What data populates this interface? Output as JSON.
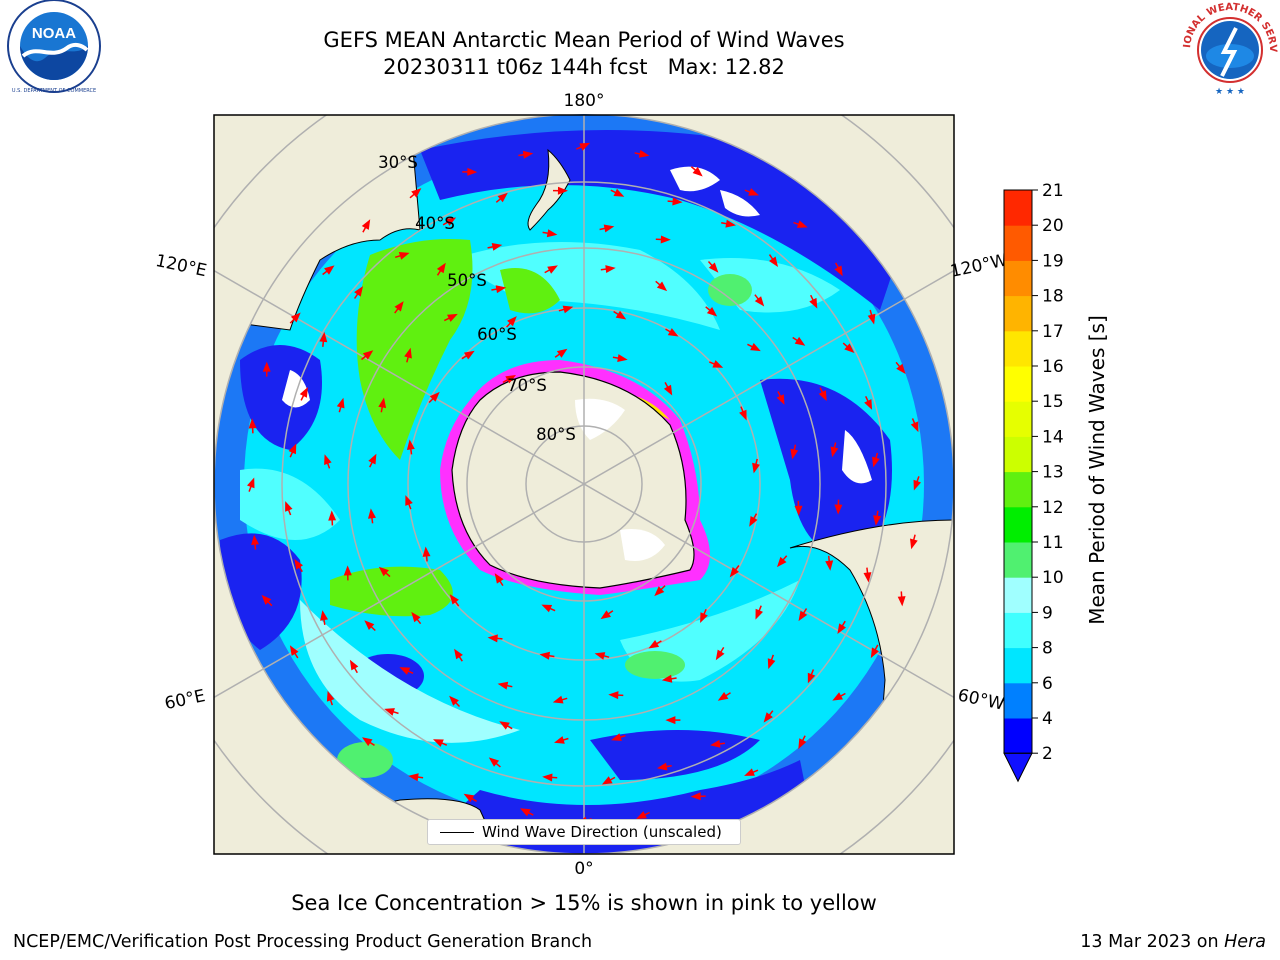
{
  "header": {
    "title_line1": "GEFS MEAN Antarctic Mean Period of Wind Waves",
    "title_line2": "20230311 t06z 144h fcst   Max: 12.82"
  },
  "logos": {
    "left": "NOAA",
    "left_ring_text": "NATIONAL OCEANIC AND ATMOSPHERIC ADMINISTRATION · U.S. DEPARTMENT OF COMMERCE",
    "right_ring_text": "NATIONAL WEATHER SERVICE"
  },
  "map": {
    "projection": "south-polar-stereographic",
    "lon_labels": {
      "top": "180°",
      "bottom": "0°",
      "upper_left": "120°E",
      "upper_right": "120°W",
      "lower_left": "60°E",
      "lower_right": "60°W"
    },
    "lat_labels": [
      "30°S",
      "40°S",
      "50°S",
      "60°S",
      "70°S",
      "80°S"
    ],
    "legend_label": "Wind Wave Direction (unscaled)",
    "colors": {
      "land": "#efedda",
      "ocean_dark": "#1a23f0",
      "ocean_mid": "#1c78f5",
      "ocean_cyan": "#00f0ff",
      "ocean_light": "#50ffff",
      "ocean_pale": "#a0ffff",
      "green_light": "#50f070",
      "green": "#60f010",
      "sea_ice": "#ff30ff",
      "arrow": "#ff0000",
      "grid": "#b0b0b0"
    }
  },
  "colorbar": {
    "label": "Mean Period of Wind Waves [s]",
    "ticks": [
      2,
      4,
      6,
      8,
      9,
      10,
      11,
      12,
      13,
      14,
      15,
      16,
      17,
      18,
      19,
      20,
      21
    ],
    "colors": [
      "#0000ff",
      "#0080ff",
      "#00e6ff",
      "#40ffff",
      "#a0ffff",
      "#50f070",
      "#00ee00",
      "#60f010",
      "#ccff00",
      "#e6ff00",
      "#ffff00",
      "#ffe600",
      "#ffb400",
      "#ff8c00",
      "#ff5a00",
      "#ff2800",
      "#ff0000"
    ],
    "under_color": "#1010ff"
  },
  "caption": "Sea Ice Concentration > 15% is shown in pink to yellow",
  "footer": {
    "left": "NCEP/EMC/Verification Post Processing Product Generation Branch",
    "right_date": "13 Mar 2023 on",
    "right_host": "Hera"
  }
}
